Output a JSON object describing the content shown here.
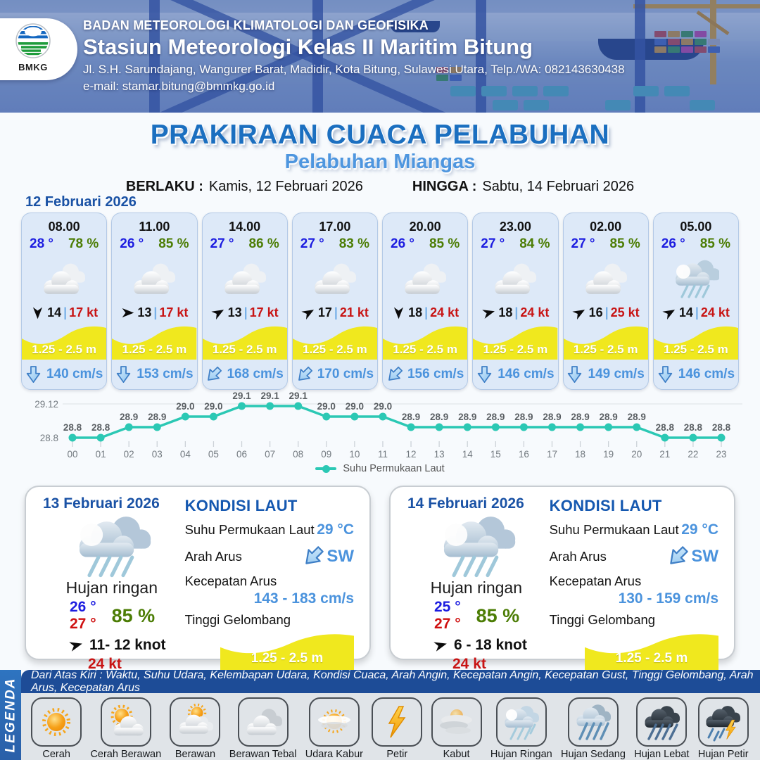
{
  "header": {
    "agency": "BADAN METEOROLOGI KLIMATOLOGI DAN GEOFISIKA",
    "station": "Stasiun Meteorologi Kelas II Maritim Bitung",
    "address": "Jl. S.H. Sarundajang, Wangurer Barat, Madidir, Kota Bitung, Sulawesi Utara, Telp./WA: 082143630438",
    "email": "e-mail: stamar.bitung@bmmkg.go.id",
    "logo_label": "BMKG"
  },
  "title": {
    "main": "PRAKIRAAN CUACA PELABUHAN",
    "port": "Pelabuhan Miangas"
  },
  "validity": {
    "from_label": "BERLAKU :",
    "from": "Kamis, 12 Februari 2026",
    "to_label": "HINGGA :",
    "to": "Sabtu, 14 Februari 2026"
  },
  "hourly": {
    "date": "12 Februari 2026",
    "sep": "|",
    "cards": [
      {
        "time": "08.00",
        "temp": "28 °",
        "humidity": "78 %",
        "weather": "berawan",
        "wind_rot": 90,
        "wind": "14",
        "gust": "17 kt",
        "wave": "1.25 - 2.5 m",
        "current_rot": 0,
        "current": "140 cm/s"
      },
      {
        "time": "11.00",
        "temp": "26 °",
        "humidity": "85 %",
        "weather": "berawan",
        "wind_rot": 0,
        "wind": "13",
        "gust": "17 kt",
        "wave": "1.25 - 2.5 m",
        "current_rot": 0,
        "current": "153 cm/s"
      },
      {
        "time": "14.00",
        "temp": "27 °",
        "humidity": "86 %",
        "weather": "berawan",
        "wind_rot": -30,
        "wind": "13",
        "gust": "17 kt",
        "wave": "1.25 - 2.5 m",
        "current_rot": 45,
        "current": "168 cm/s"
      },
      {
        "time": "17.00",
        "temp": "27 °",
        "humidity": "83 %",
        "weather": "berawan",
        "wind_rot": -30,
        "wind": "17",
        "gust": "21 kt",
        "wave": "1.25 - 2.5 m",
        "current_rot": 45,
        "current": "170 cm/s"
      },
      {
        "time": "20.00",
        "temp": "26 °",
        "humidity": "85 %",
        "weather": "berawan",
        "wind_rot": 90,
        "wind": "18",
        "gust": "24 kt",
        "wave": "1.25 - 2.5 m",
        "current_rot": 45,
        "current": "156 cm/s"
      },
      {
        "time": "23.00",
        "temp": "27 °",
        "humidity": "84 %",
        "weather": "berawan",
        "wind_rot": -15,
        "wind": "18",
        "gust": "24 kt",
        "wave": "1.25 - 2.5 m",
        "current_rot": 0,
        "current": "146 cm/s"
      },
      {
        "time": "02.00",
        "temp": "27 °",
        "humidity": "85 %",
        "weather": "berawan",
        "wind_rot": -30,
        "wind": "16",
        "gust": "25 kt",
        "wave": "1.25 - 2.5 m",
        "current_rot": 0,
        "current": "149 cm/s"
      },
      {
        "time": "05.00",
        "temp": "26 °",
        "humidity": "85 %",
        "weather": "hujan-ringan",
        "wind_rot": -30,
        "wind": "14",
        "gust": "24 kt",
        "wave": "1.25 - 2.5 m",
        "current_rot": 0,
        "current": "146 cm/s"
      }
    ]
  },
  "chart_data": {
    "type": "line",
    "series_label": "Suhu Permukaan Laut",
    "x": [
      "00",
      "01",
      "02",
      "03",
      "04",
      "05",
      "06",
      "07",
      "08",
      "09",
      "10",
      "11",
      "12",
      "13",
      "14",
      "15",
      "16",
      "17",
      "18",
      "19",
      "20",
      "21",
      "22",
      "23"
    ],
    "values": [
      28.8,
      28.8,
      28.9,
      28.9,
      29.0,
      29.0,
      29.1,
      29.1,
      29.1,
      29.0,
      29.0,
      29.0,
      28.9,
      28.9,
      28.9,
      28.9,
      28.9,
      28.9,
      28.9,
      28.9,
      28.9,
      28.8,
      28.8,
      28.8
    ],
    "ylim": [
      28.8,
      29.12
    ],
    "color": "#2bc8b4",
    "grid": "top-line-only",
    "legend_position": "bottom"
  },
  "daily": {
    "cards": [
      {
        "date": "13 Februari 2026",
        "weather": "hujan-ringan",
        "condition": "Hujan ringan",
        "temp_min": "26 °",
        "temp_max": "27 °",
        "humidity": "85 %",
        "wind_rot": -15,
        "wind": "11- 12 knot",
        "gust": "24 kt",
        "sea": {
          "title": "KONDISI LAUT",
          "sst_label": "Suhu Permukaan Laut",
          "sst": "29 °C",
          "dir_label": "Arah Arus",
          "dir": "SW",
          "dir_rot": 45,
          "speed_label": "Kecepatan Arus",
          "speed": "143 - 183 cm/s",
          "wave_label": "Tinggi Gelombang",
          "wave": "1.25 - 2.5 m"
        }
      },
      {
        "date": "14 Februari 2026",
        "weather": "hujan-ringan",
        "condition": "Hujan ringan",
        "temp_min": "25 °",
        "temp_max": "27 °",
        "humidity": "85 %",
        "wind_rot": -15,
        "wind": "6 - 18 knot",
        "gust": "24 kt",
        "sea": {
          "title": "KONDISI LAUT",
          "sst_label": "Suhu Permukaan Laut",
          "sst": "29 °C",
          "dir_label": "Arah Arus",
          "dir": "SW",
          "dir_rot": 45,
          "speed_label": "Kecepatan Arus",
          "speed": "130 - 159 cm/s",
          "wave_label": "Tinggi Gelombang",
          "wave": "1.25 - 2.5 m"
        }
      }
    ]
  },
  "legend": {
    "title": "LEGENDA",
    "note": "Dari Atas Kiri : Waktu, Suhu Udara, Kelembapan Udara, Kondisi Cuaca, Arah Angin, Kecepatan Angin, Kecepatan Gust, Tinggi Gelombang, Arah Arus, Kecepatan Arus",
    "items": [
      {
        "label": "Cerah",
        "icon": "cerah-icon"
      },
      {
        "label": "Cerah Berawan",
        "icon": "cerah-berawan-icon"
      },
      {
        "label": "Berawan",
        "icon": "berawan-icon"
      },
      {
        "label": "Berawan Tebal",
        "icon": "berawan-tebal-icon"
      },
      {
        "label": "Udara Kabur",
        "icon": "udara-kabur-icon"
      },
      {
        "label": "Petir",
        "icon": "petir-icon"
      },
      {
        "label": "Kabut",
        "icon": "kabut-icon"
      },
      {
        "label": "Hujan Ringan",
        "icon": "hujan-ringan-icon"
      },
      {
        "label": "Hujan Sedang",
        "icon": "hujan-sedang-icon"
      },
      {
        "label": "Hujan Lebat",
        "icon": "hujan-lebat-icon"
      },
      {
        "label": "Hujan Petir",
        "icon": "hujan-petir-icon"
      }
    ]
  },
  "colors": {
    "title_blue": "#1b6fc0",
    "subtitle_blue": "#4e96df",
    "temp_blue": "#1d1de0",
    "humidity_green": "#4c7d05",
    "gust_red": "#c81414",
    "wave_yellow": "#f0e81e",
    "current_blue": "#4b93dd",
    "chart_teal": "#2bc8b4",
    "legend_bar_blue": "#1d4c97"
  }
}
